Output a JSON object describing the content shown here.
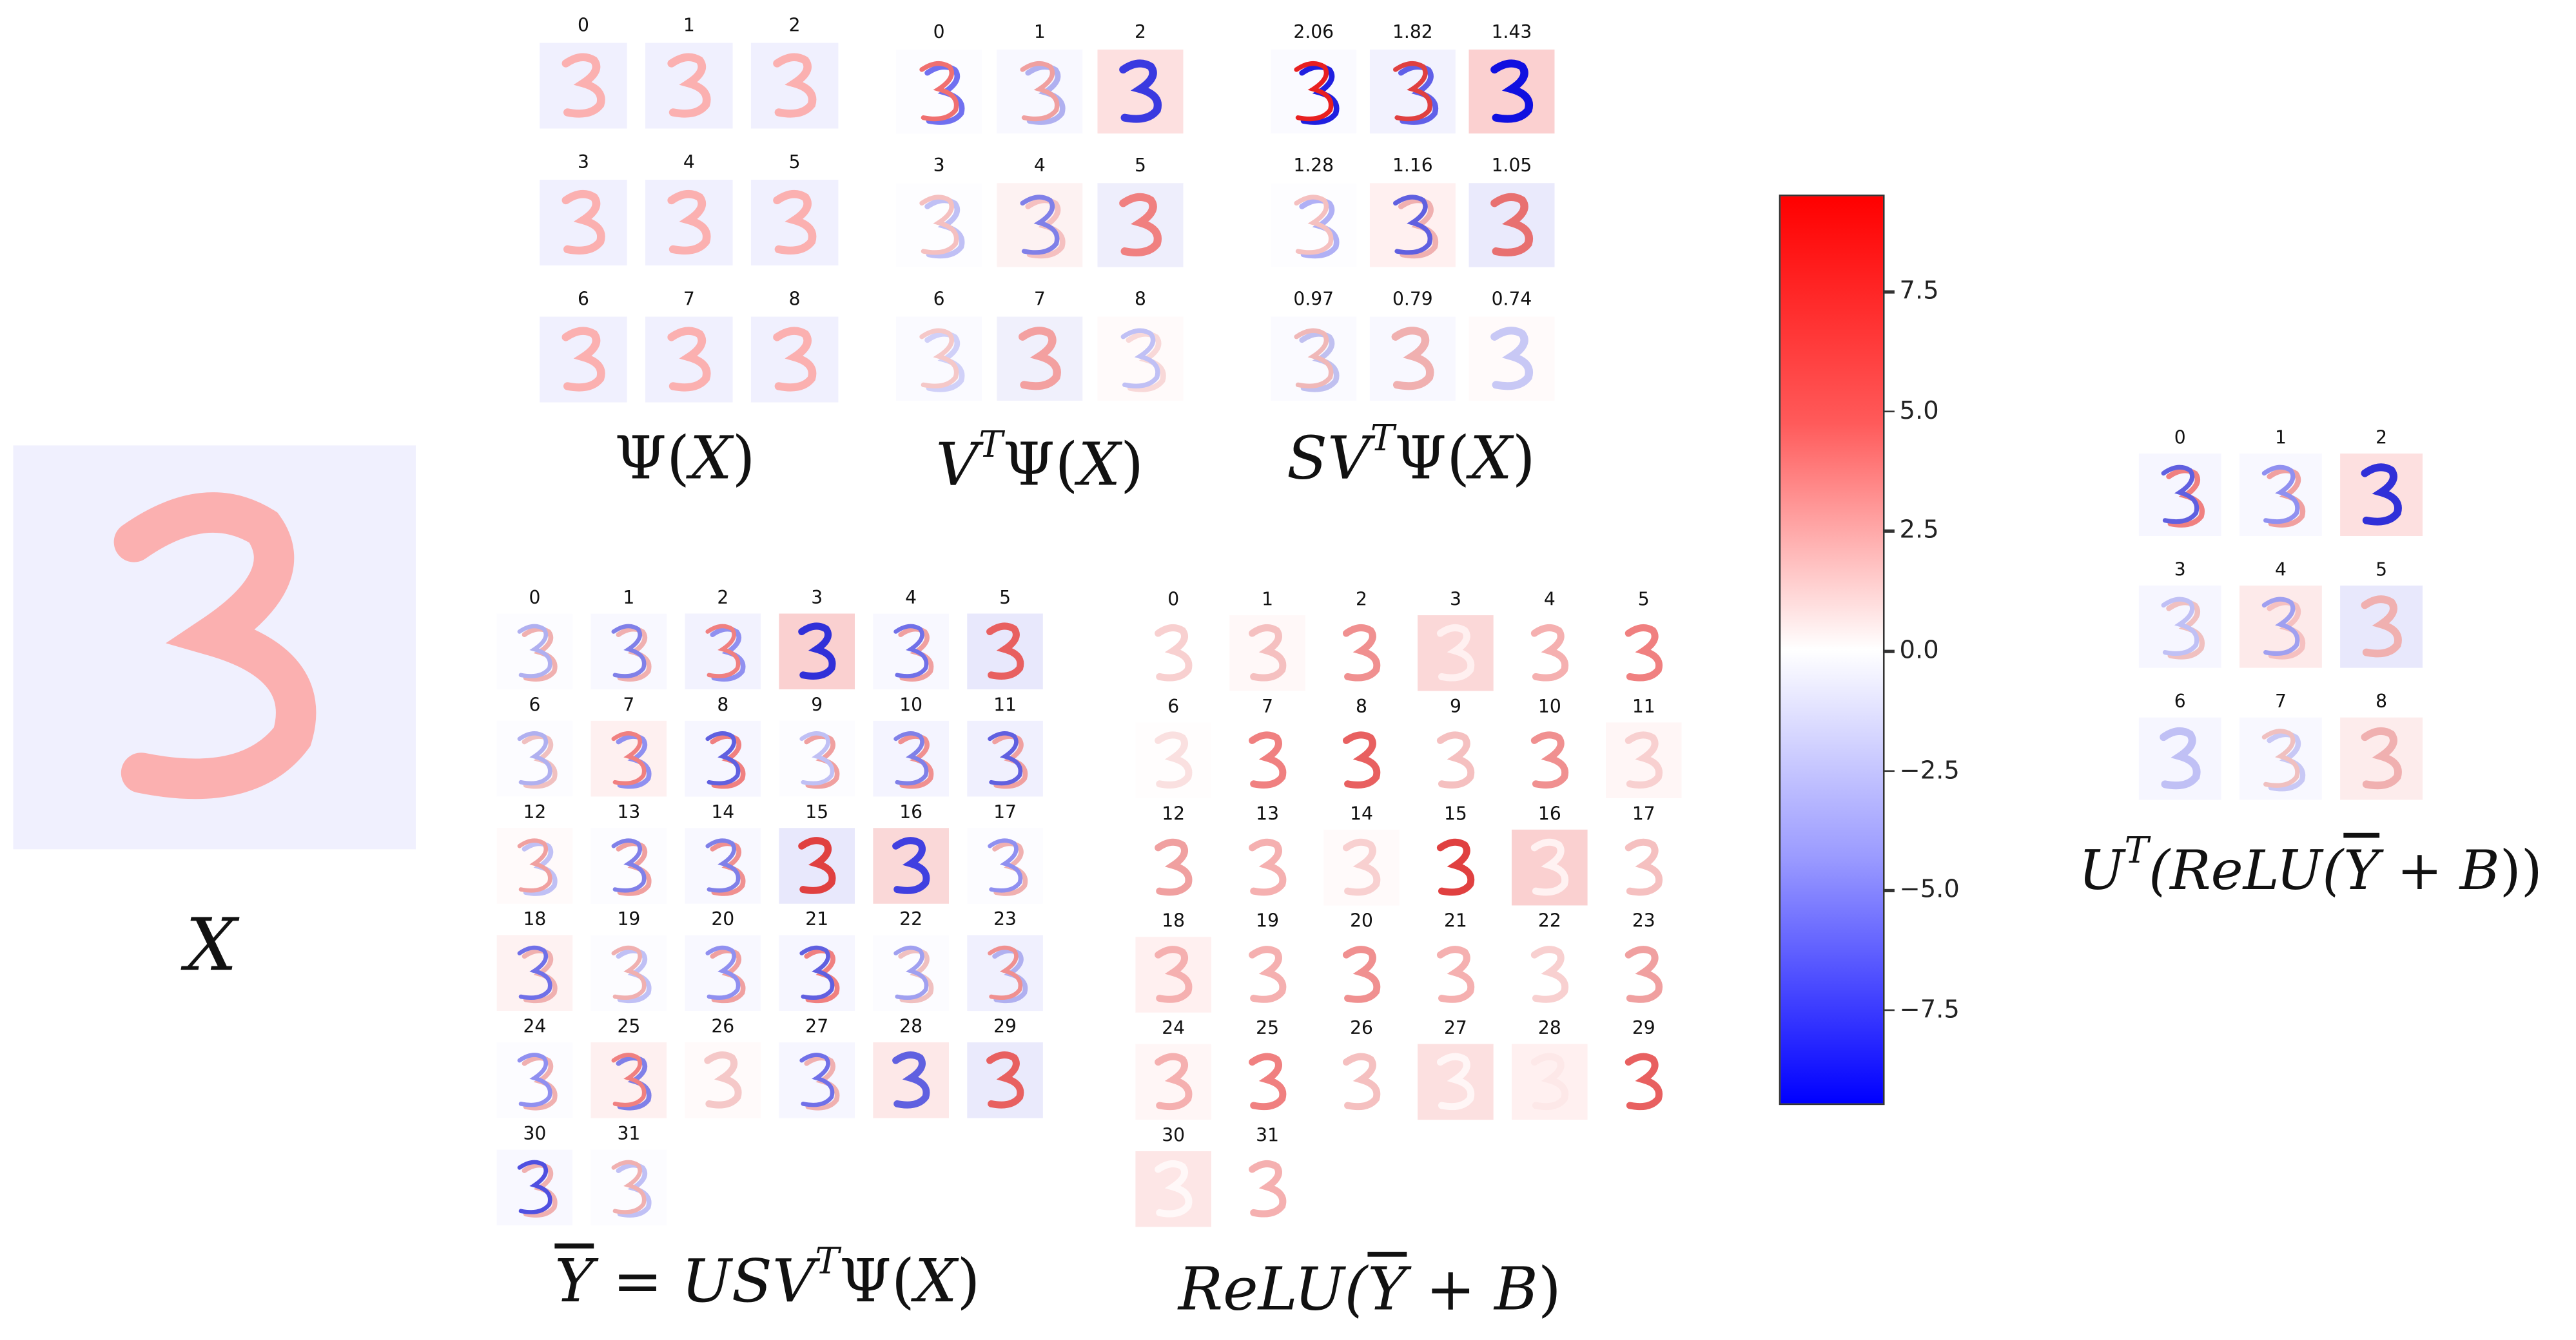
{
  "input_image": {
    "label": "X",
    "bg": "#f0f0fe",
    "fg": "#fbb0b0"
  },
  "psi": {
    "label": [
      "Ψ(",
      "X",
      ")"
    ],
    "cells": [
      [
        "0",
        "#f0f0fe",
        "#fbb0b0",
        ""
      ],
      [
        "1",
        "#f0f0fe",
        "#fbb0b0",
        ""
      ],
      [
        "2",
        "#f0f0fe",
        "#fbb0b0",
        ""
      ],
      [
        "3",
        "#f0f0fe",
        "#fbb0b0",
        ""
      ],
      [
        "4",
        "#f0f0fe",
        "#fbb0b0",
        ""
      ],
      [
        "5",
        "#f0f0fe",
        "#fbb0b0",
        ""
      ],
      [
        "6",
        "#f0f0fe",
        "#fbb0b0",
        ""
      ],
      [
        "7",
        "#f0f0fe",
        "#fbb0b0",
        ""
      ],
      [
        "8",
        "#f0f0fe",
        "#fbb0b0",
        ""
      ]
    ]
  },
  "vt_psi": {
    "label": [
      "V",
      "T",
      "Ψ(",
      "X",
      ")"
    ],
    "cells": [
      [
        "0",
        "#fcfcff",
        "#f07070",
        "#7070f0"
      ],
      [
        "1",
        "#f8f8ff",
        "#f0a0a0",
        "#b0b0f0"
      ],
      [
        "2",
        "#fde0e0",
        "#3a3ae0",
        ""
      ],
      [
        "3",
        "#fdfdff",
        "#f5c0c0",
        "#c0c0f5"
      ],
      [
        "4",
        "#fdf2f2",
        "#8080e8",
        "#f5c0c0"
      ],
      [
        "5",
        "#eeeefc",
        "#f08080",
        ""
      ],
      [
        "6",
        "#fafaff",
        "#f5c8c8",
        "#d0d0f8"
      ],
      [
        "7",
        "#f0f0fc",
        "#f3a0a0",
        ""
      ],
      [
        "8",
        "#fffafa",
        "#c0c0f5",
        "#f8d8d8"
      ]
    ]
  },
  "svt_psi": {
    "label": [
      "SV",
      "T",
      "Ψ(",
      "X",
      ")"
    ],
    "cells": [
      [
        "2.06",
        "#fafaff",
        "#e82020",
        "#2020e0"
      ],
      [
        "1.82",
        "#f2f2fe",
        "#e04040",
        "#6060e8"
      ],
      [
        "1.43",
        "#fbd0d0",
        "#1010e0",
        ""
      ],
      [
        "1.28",
        "#fdfdff",
        "#f5c0c0",
        "#b0b0f5"
      ],
      [
        "1.16",
        "#fff0f0",
        "#6060e0",
        "#f0b0b0"
      ],
      [
        "1.05",
        "#eaeafc",
        "#e87070",
        ""
      ],
      [
        "0.97",
        "#fafaff",
        "#f0b8b8",
        "#c0c0f0"
      ],
      [
        "0.79",
        "#f8f8ff",
        "#f0b0b0",
        ""
      ],
      [
        "0.74",
        "#fffafa",
        "#c8c8f5",
        ""
      ]
    ]
  },
  "colorbar": {
    "colormap": "bwr",
    "range": [
      -9.5,
      9.5
    ],
    "ticks": [
      "7.5",
      "5.0",
      "2.5",
      "0.0",
      "−2.5",
      "−5.0",
      "−7.5"
    ],
    "tick_values": [
      7.5,
      5.0,
      2.5,
      0.0,
      -2.5,
      -5.0,
      -7.5
    ],
    "colors": {
      "max": "#ff0000",
      "mid": "#ffffff",
      "min": "#0000ff"
    }
  },
  "ybar": {
    "label": [
      "Y",
      " = ",
      "USV",
      "T",
      "Ψ(",
      "X",
      ")"
    ],
    "cells": [
      [
        "0",
        "#fcfcff",
        "#b0b0f0",
        "#f0b0b0"
      ],
      [
        "1",
        "#f8f8ff",
        "#8080e8",
        "#f0b0b0"
      ],
      [
        "2",
        "#f2f2fe",
        "#f08080",
        "#9090f0"
      ],
      [
        "3",
        "#fad0d0",
        "#3030d8",
        ""
      ],
      [
        "4",
        "#f8f8ff",
        "#7070e8",
        "#f0a0a0"
      ],
      [
        "5",
        "#e8e8fc",
        "#e86060",
        ""
      ],
      [
        "6",
        "#fcfcff",
        "#b0b0f0",
        "#f0c0c0"
      ],
      [
        "7",
        "#fef0f0",
        "#f08080",
        "#9090f0"
      ],
      [
        "8",
        "#f6f6ff",
        "#6060e0",
        "#f08080"
      ],
      [
        "9",
        "#fcfcff",
        "#c0c0f5",
        "#f0a0a0"
      ],
      [
        "10",
        "#f4f4ff",
        "#8080e8",
        "#f09090"
      ],
      [
        "11",
        "#f0f0fe",
        "#6060e0",
        "#f0a0a0"
      ],
      [
        "12",
        "#fffafa",
        "#f0a0a0",
        "#c0c0f5"
      ],
      [
        "13",
        "#fcfcff",
        "#8080e8",
        "#f0a0a0"
      ],
      [
        "14",
        "#f8f8ff",
        "#8080e8",
        "#f09090"
      ],
      [
        "15",
        "#e8e8fc",
        "#e04040",
        ""
      ],
      [
        "16",
        "#fad8d8",
        "#4040e0",
        ""
      ],
      [
        "17",
        "#fcfcff",
        "#9090f0",
        "#f0b0b0"
      ],
      [
        "18",
        "#fef2f2",
        "#7070e8",
        "#f0b0b0"
      ],
      [
        "19",
        "#fcfcff",
        "#f0b0b0",
        "#c0c0f5"
      ],
      [
        "20",
        "#f8f8ff",
        "#9090f0",
        "#f0a0a0"
      ],
      [
        "21",
        "#f6f6ff",
        "#6060e0",
        "#f08080"
      ],
      [
        "22",
        "#fcfcff",
        "#a0a0f0",
        "#f0c0c0"
      ],
      [
        "23",
        "#f0f0fe",
        "#f09090",
        "#b0b0f0"
      ],
      [
        "24",
        "#fcfcff",
        "#9090f0",
        "#f0b0b0"
      ],
      [
        "25",
        "#fef0f0",
        "#f08080",
        "#8080e8"
      ],
      [
        "26",
        "#fffafa",
        "#f5c8c8",
        ""
      ],
      [
        "27",
        "#f6f6ff",
        "#7070e8",
        "#f0b0b0"
      ],
      [
        "28",
        "#fde8e8",
        "#6060e0",
        ""
      ],
      [
        "29",
        "#eaeafc",
        "#e86060",
        ""
      ],
      [
        "30",
        "#f8f8ff",
        "#5050e0",
        "#f0b0b0"
      ],
      [
        "31",
        "#fcfcff",
        "#f0b0b0",
        "#c0c0f5"
      ]
    ]
  },
  "relu": {
    "label": [
      "ReLU(",
      "Y",
      " + ",
      "B",
      ")"
    ],
    "cells": [
      [
        "0",
        "#ffffff",
        "#f8d0d0",
        ""
      ],
      [
        "1",
        "#fff8f8",
        "#f5c0c0",
        ""
      ],
      [
        "2",
        "#ffffff",
        "#f09090",
        ""
      ],
      [
        "3",
        "#fbd8d8",
        "#fff0f0",
        ""
      ],
      [
        "4",
        "#ffffff",
        "#f5b0b0",
        ""
      ],
      [
        "5",
        "#ffffff",
        "#f08080",
        ""
      ],
      [
        "6",
        "#fffdfd",
        "#fae0e0",
        ""
      ],
      [
        "7",
        "#ffffff",
        "#f08080",
        ""
      ],
      [
        "8",
        "#ffffff",
        "#e86060",
        ""
      ],
      [
        "9",
        "#ffffff",
        "#f5c0c0",
        ""
      ],
      [
        "10",
        "#ffffff",
        "#f09090",
        ""
      ],
      [
        "11",
        "#fff6f6",
        "#f8d0d0",
        ""
      ],
      [
        "12",
        "#ffffff",
        "#f0a0a0",
        ""
      ],
      [
        "13",
        "#ffffff",
        "#f5b0b0",
        ""
      ],
      [
        "14",
        "#fffafa",
        "#f8d0d0",
        ""
      ],
      [
        "15",
        "#ffffff",
        "#e04040",
        ""
      ],
      [
        "16",
        "#fad0d0",
        "#fff2f2",
        ""
      ],
      [
        "17",
        "#ffffff",
        "#f5c0c0",
        ""
      ],
      [
        "18",
        "#fff0f0",
        "#f5b0b0",
        ""
      ],
      [
        "19",
        "#ffffff",
        "#f5b0b0",
        ""
      ],
      [
        "20",
        "#ffffff",
        "#f09090",
        ""
      ],
      [
        "21",
        "#ffffff",
        "#f5b0b0",
        ""
      ],
      [
        "22",
        "#ffffff",
        "#f8d0d0",
        ""
      ],
      [
        "23",
        "#ffffff",
        "#f0a0a0",
        ""
      ],
      [
        "24",
        "#fff6f6",
        "#f5b0b0",
        ""
      ],
      [
        "25",
        "#ffffff",
        "#f08080",
        ""
      ],
      [
        "26",
        "#ffffff",
        "#f5c0c0",
        ""
      ],
      [
        "27",
        "#fce0e0",
        "#fff6f6",
        ""
      ],
      [
        "28",
        "#fff0f0",
        "#fde8e8",
        ""
      ],
      [
        "29",
        "#ffffff",
        "#e86060",
        ""
      ],
      [
        "30",
        "#fde6e6",
        "#fff8f8",
        ""
      ],
      [
        "31",
        "#ffffff",
        "#f5b0b0",
        ""
      ]
    ]
  },
  "ut_relu": {
    "label": [
      "U",
      "T",
      "(ReLU(",
      "Y",
      " + ",
      "B",
      "))"
    ],
    "cells": [
      [
        "0",
        "#f6f6ff",
        "#6060e0",
        "#f08080"
      ],
      [
        "1",
        "#f8f8ff",
        "#9090f0",
        "#f0a0a0"
      ],
      [
        "2",
        "#fde0e0",
        "#3030d8",
        ""
      ],
      [
        "3",
        "#f6f6ff",
        "#c0c0f5",
        "#f0c0c0"
      ],
      [
        "4",
        "#fdeaea",
        "#a0a0f0",
        "#f5c0c0"
      ],
      [
        "5",
        "#e8e8fc",
        "#f0b0b0",
        ""
      ],
      [
        "6",
        "#f6f6ff",
        "#c0c0f5",
        ""
      ],
      [
        "7",
        "#f8f8ff",
        "#f0c0c0",
        "#c8c8f5"
      ],
      [
        "8",
        "#fdecec",
        "#f0b0b0",
        ""
      ]
    ]
  }
}
